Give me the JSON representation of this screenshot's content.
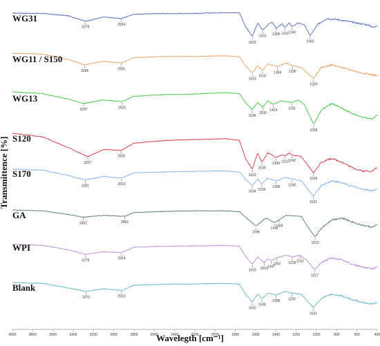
{
  "chart_data": {
    "type": "line",
    "title": "",
    "xlabel": "Wavelegth [cm⁻¹]",
    "ylabel": "Transmittence [%]",
    "xlim": [
      4000,
      400
    ],
    "x_ticks": [
      4000,
      3800,
      3600,
      3400,
      3200,
      3000,
      2800,
      2600,
      2400,
      2200,
      2000,
      1800,
      1600,
      1400,
      1200,
      1000,
      800,
      600,
      400
    ],
    "grid": false,
    "legend": "none",
    "series": [
      {
        "name": "WG31",
        "color": "#4a63b8",
        "peaks": [
          3279,
          2924,
          1633,
          1531,
          1396,
          1311,
          1240,
          1063
        ],
        "points": [
          [
            4000,
            0
          ],
          [
            3700,
            -0.2
          ],
          [
            3450,
            -1.5
          ],
          [
            3279,
            -4.5
          ],
          [
            3100,
            -2.2
          ],
          [
            2924,
            -3.0
          ],
          [
            2800,
            -0.6
          ],
          [
            2600,
            -0.3
          ],
          [
            2200,
            -0.2
          ],
          [
            1900,
            0.3
          ],
          [
            1760,
            0.2
          ],
          [
            1700,
            -7.5
          ],
          [
            1633,
            -13
          ],
          [
            1580,
            -5.5
          ],
          [
            1531,
            -9.5
          ],
          [
            1480,
            -6.5
          ],
          [
            1440,
            -5.0
          ],
          [
            1396,
            -8.5
          ],
          [
            1340,
            -6.0
          ],
          [
            1311,
            -8.0
          ],
          [
            1270,
            -5.5
          ],
          [
            1240,
            -7.5
          ],
          [
            1180,
            -5.5
          ],
          [
            1120,
            -6.5
          ],
          [
            1063,
            -12.5
          ],
          [
            980,
            -6.0
          ],
          [
            900,
            -3.0
          ],
          [
            800,
            -3.5
          ],
          [
            700,
            -4.5
          ],
          [
            600,
            -5.5
          ],
          [
            500,
            -6.5
          ],
          [
            430,
            -8
          ],
          [
            400,
            -6.5
          ]
        ]
      },
      {
        "name": "WG11 / S150",
        "color": "#ec9b5a",
        "peaks": [
          3286,
          2926,
          1633,
          1532,
          1384,
          1236,
          1029
        ],
        "points": [
          [
            4000,
            0
          ],
          [
            3700,
            -0.5
          ],
          [
            3450,
            -3.5
          ],
          [
            3286,
            -6.5
          ],
          [
            3100,
            -4.5
          ],
          [
            2926,
            -5.5
          ],
          [
            2800,
            -2.5
          ],
          [
            2500,
            -1.8
          ],
          [
            2200,
            -1.8
          ],
          [
            1900,
            -1.5
          ],
          [
            1760,
            -2.0
          ],
          [
            1700,
            -7.0
          ],
          [
            1633,
            -11
          ],
          [
            1580,
            -7.0
          ],
          [
            1532,
            -9.5
          ],
          [
            1480,
            -6.0
          ],
          [
            1384,
            -7.5
          ],
          [
            1300,
            -5.5
          ],
          [
            1236,
            -7.0
          ],
          [
            1150,
            -8.0
          ],
          [
            1029,
            -14
          ],
          [
            950,
            -8.0
          ],
          [
            850,
            -6.5
          ],
          [
            750,
            -8.0
          ],
          [
            650,
            -9.5
          ],
          [
            550,
            -11
          ],
          [
            450,
            -12
          ],
          [
            400,
            -12.5
          ]
        ]
      },
      {
        "name": "WG13",
        "color": "#3ac63a",
        "peaks": [
          3297,
          2920,
          1634,
          1530,
          1424,
          1241,
          1028
        ],
        "points": [
          [
            4000,
            0
          ],
          [
            3700,
            -1.0
          ],
          [
            3450,
            -4.0
          ],
          [
            3297,
            -6.5
          ],
          [
            3100,
            -4.5
          ],
          [
            2920,
            -5.5
          ],
          [
            2800,
            -2.5
          ],
          [
            2500,
            -1.5
          ],
          [
            2200,
            -1.2
          ],
          [
            1900,
            -0.5
          ],
          [
            1760,
            -1.0
          ],
          [
            1700,
            -6.0
          ],
          [
            1634,
            -10
          ],
          [
            1580,
            -6.0
          ],
          [
            1530,
            -8.5
          ],
          [
            1480,
            -5.0
          ],
          [
            1424,
            -7.0
          ],
          [
            1350,
            -5.0
          ],
          [
            1241,
            -6.0
          ],
          [
            1180,
            -4.5
          ],
          [
            1120,
            -7.0
          ],
          [
            1028,
            -18
          ],
          [
            950,
            -10
          ],
          [
            850,
            -6.5
          ],
          [
            750,
            -9.0
          ],
          [
            650,
            -12
          ],
          [
            550,
            -14
          ],
          [
            450,
            -15
          ],
          [
            400,
            -13
          ]
        ]
      },
      {
        "name": "S120",
        "color": "#d42f3a",
        "peaks": [
          3257,
          2925,
          1633,
          1538,
          1399,
          1311,
          1242,
          1029
        ],
        "points": [
          [
            4000,
            0
          ],
          [
            3700,
            -2.0
          ],
          [
            3450,
            -8.0
          ],
          [
            3257,
            -13
          ],
          [
            3100,
            -9.0
          ],
          [
            2925,
            -9.5
          ],
          [
            2800,
            -5.5
          ],
          [
            2500,
            -4.0
          ],
          [
            2200,
            -3.5
          ],
          [
            1900,
            -3.0
          ],
          [
            1760,
            -4.0
          ],
          [
            1700,
            -14
          ],
          [
            1633,
            -20
          ],
          [
            1580,
            -11
          ],
          [
            1538,
            -16
          ],
          [
            1480,
            -11
          ],
          [
            1440,
            -12
          ],
          [
            1399,
            -13.5
          ],
          [
            1340,
            -12
          ],
          [
            1311,
            -12.5
          ],
          [
            1270,
            -11
          ],
          [
            1242,
            -12
          ],
          [
            1150,
            -13
          ],
          [
            1029,
            -22
          ],
          [
            950,
            -16
          ],
          [
            850,
            -14
          ],
          [
            750,
            -16
          ],
          [
            650,
            -19
          ],
          [
            550,
            -21
          ],
          [
            450,
            -21
          ],
          [
            400,
            -19
          ]
        ]
      },
      {
        "name": "S170",
        "color": "#7aaee6",
        "peaks": [
          3281,
          2923,
          1634,
          1539,
          1396,
          1240,
          1031
        ],
        "points": [
          [
            4000,
            0
          ],
          [
            3700,
            -0.5
          ],
          [
            3450,
            -3.5
          ],
          [
            3281,
            -6.0
          ],
          [
            3100,
            -4.0
          ],
          [
            2923,
            -5.0
          ],
          [
            2800,
            -2.0
          ],
          [
            2500,
            -1.5
          ],
          [
            2200,
            -1.2
          ],
          [
            1900,
            -1.0
          ],
          [
            1760,
            -1.5
          ],
          [
            1700,
            -5.5
          ],
          [
            1634,
            -9.0
          ],
          [
            1580,
            -5.5
          ],
          [
            1539,
            -8.0
          ],
          [
            1480,
            -5.0
          ],
          [
            1396,
            -6.5
          ],
          [
            1300,
            -4.5
          ],
          [
            1240,
            -5.5
          ],
          [
            1150,
            -6.5
          ],
          [
            1031,
            -15
          ],
          [
            950,
            -9.0
          ],
          [
            850,
            -6.5
          ],
          [
            750,
            -7.5
          ],
          [
            650,
            -9.5
          ],
          [
            550,
            -11
          ],
          [
            450,
            -12
          ],
          [
            400,
            -11
          ]
        ]
      },
      {
        "name": "GA",
        "color": "#4f7a60",
        "peaks": [
          3302,
          2892,
          1596,
          1416,
          1368,
          1013
        ],
        "points": [
          [
            4000,
            0
          ],
          [
            3700,
            -0.5
          ],
          [
            3450,
            -2.5
          ],
          [
            3302,
            -4.0
          ],
          [
            3100,
            -3.0
          ],
          [
            2892,
            -3.5
          ],
          [
            2800,
            -1.5
          ],
          [
            2500,
            -0.8
          ],
          [
            2200,
            -0.5
          ],
          [
            1900,
            -0.5
          ],
          [
            1760,
            -1.0
          ],
          [
            1700,
            -4.0
          ],
          [
            1596,
            -9.0
          ],
          [
            1500,
            -4.5
          ],
          [
            1416,
            -7.0
          ],
          [
            1368,
            -5.5
          ],
          [
            1300,
            -3.0
          ],
          [
            1150,
            -3.5
          ],
          [
            1080,
            -10
          ],
          [
            1013,
            -15
          ],
          [
            950,
            -10
          ],
          [
            850,
            -5.5
          ],
          [
            750,
            -4.5
          ],
          [
            650,
            -6.5
          ],
          [
            550,
            -8.5
          ],
          [
            450,
            -9.5
          ],
          [
            400,
            -8.5
          ]
        ]
      },
      {
        "name": "WPI",
        "color": "#b888d6",
        "peaks": [
          3279,
          2924,
          1633,
          1516,
          1447,
          1393,
          1239,
          1161,
          1017
        ],
        "points": [
          [
            4000,
            0
          ],
          [
            3700,
            -0.5
          ],
          [
            3450,
            -3.0
          ],
          [
            3279,
            -5.5
          ],
          [
            3100,
            -4.0
          ],
          [
            2924,
            -4.5
          ],
          [
            2800,
            -1.5
          ],
          [
            2500,
            -1.0
          ],
          [
            2200,
            -0.8
          ],
          [
            1900,
            -0.5
          ],
          [
            1760,
            -1.0
          ],
          [
            1700,
            -6.5
          ],
          [
            1633,
            -11
          ],
          [
            1580,
            -7.0
          ],
          [
            1516,
            -10
          ],
          [
            1480,
            -8.0
          ],
          [
            1447,
            -9.0
          ],
          [
            1393,
            -7.5
          ],
          [
            1300,
            -6.0
          ],
          [
            1239,
            -7.0
          ],
          [
            1161,
            -6.0
          ],
          [
            1100,
            -8.5
          ],
          [
            1017,
            -14
          ],
          [
            950,
            -10
          ],
          [
            850,
            -7.5
          ],
          [
            750,
            -8.5
          ],
          [
            650,
            -11
          ],
          [
            550,
            -12.5
          ],
          [
            450,
            -13.5
          ],
          [
            400,
            -12.5
          ]
        ]
      },
      {
        "name": "Blank",
        "color": "#5bb5c1",
        "peaks": [
          3273,
          2923,
          1633,
          1538,
          1398,
          1242,
          1031
        ],
        "points": [
          [
            4000,
            0
          ],
          [
            3700,
            -0.5
          ],
          [
            3450,
            -3.0
          ],
          [
            3273,
            -5.0
          ],
          [
            3100,
            -3.5
          ],
          [
            2923,
            -4.5
          ],
          [
            2800,
            -1.5
          ],
          [
            2500,
            -1.0
          ],
          [
            2200,
            -0.8
          ],
          [
            1900,
            -0.5
          ],
          [
            1760,
            -1.0
          ],
          [
            1700,
            -6.5
          ],
          [
            1633,
            -11
          ],
          [
            1580,
            -6.5
          ],
          [
            1538,
            -9.0
          ],
          [
            1480,
            -6.0
          ],
          [
            1398,
            -7.0
          ],
          [
            1300,
            -5.0
          ],
          [
            1242,
            -6.0
          ],
          [
            1150,
            -6.5
          ],
          [
            1031,
            -14
          ],
          [
            950,
            -9.0
          ],
          [
            850,
            -6.5
          ],
          [
            750,
            -7.5
          ],
          [
            650,
            -9.5
          ],
          [
            550,
            -11
          ],
          [
            450,
            -12
          ],
          [
            400,
            -11
          ]
        ]
      }
    ]
  }
}
